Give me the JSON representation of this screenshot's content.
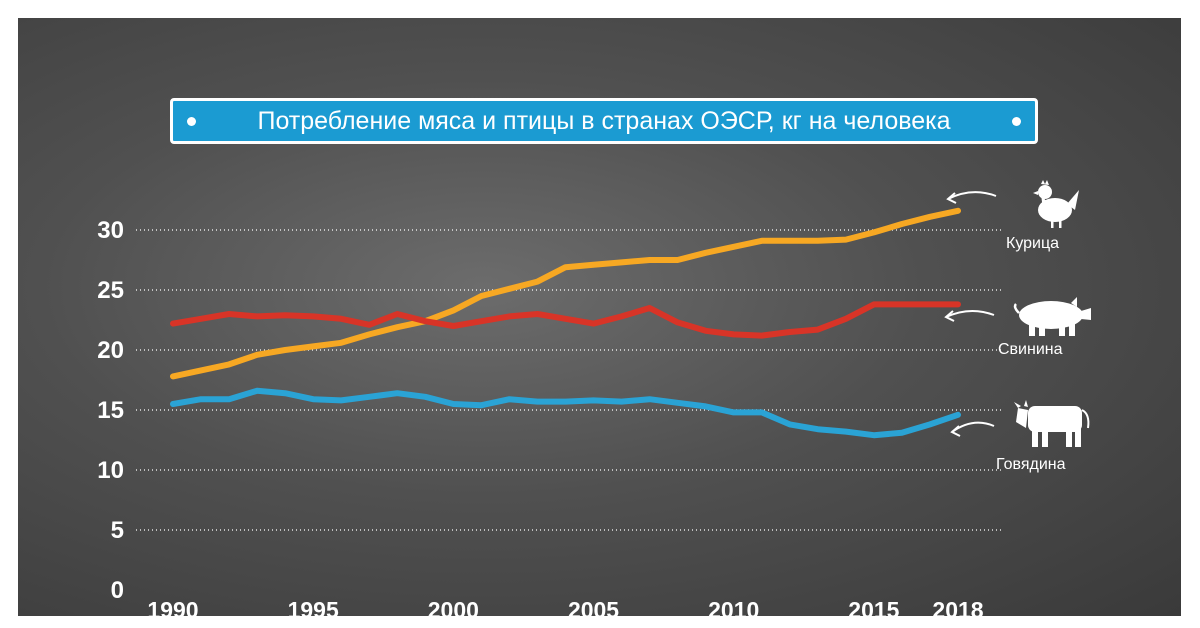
{
  "chart_data": {
    "type": "line",
    "title": "Потребление мяса и птицы в странах ОЭСР, кг на человека",
    "x_ticks": [
      1990,
      1995,
      2000,
      2005,
      2010,
      2015,
      2018
    ],
    "y_ticks": [
      0,
      5,
      10,
      15,
      20,
      25,
      30
    ],
    "xlim": [
      1990,
      2018
    ],
    "ylim": [
      0,
      30
    ],
    "grid": "horizontal dotted",
    "x": [
      1990,
      1991,
      1992,
      1993,
      1994,
      1995,
      1996,
      1997,
      1998,
      1999,
      2000,
      2001,
      2002,
      2003,
      2004,
      2005,
      2006,
      2007,
      2008,
      2009,
      2010,
      2011,
      2012,
      2013,
      2014,
      2015,
      2016,
      2017,
      2018
    ],
    "series": [
      {
        "name": "Курица",
        "color": "#f7a823",
        "values": [
          17.8,
          18.3,
          18.8,
          19.6,
          20.0,
          20.3,
          20.6,
          21.3,
          21.9,
          22.4,
          23.3,
          24.5,
          25.1,
          25.7,
          26.9,
          27.1,
          27.3,
          27.5,
          27.5,
          28.1,
          28.6,
          29.1,
          29.1,
          29.1,
          29.2,
          29.8,
          30.5,
          31.1,
          31.6
        ]
      },
      {
        "name": "Свинина",
        "color": "#d83427",
        "values": [
          22.2,
          22.6,
          23.0,
          22.8,
          22.9,
          22.8,
          22.6,
          22.1,
          23.0,
          22.4,
          22.0,
          22.4,
          22.8,
          23.0,
          22.6,
          22.2,
          22.8,
          23.5,
          22.3,
          21.6,
          21.3,
          21.2,
          21.5,
          21.7,
          22.6,
          23.8,
          23.8,
          23.8,
          23.8
        ]
      },
      {
        "name": "Говядина",
        "color": "#2aa3d5",
        "values": [
          15.5,
          15.9,
          15.9,
          16.6,
          16.4,
          15.9,
          15.8,
          16.1,
          16.4,
          16.1,
          15.5,
          15.4,
          15.9,
          15.7,
          15.7,
          15.8,
          15.7,
          15.9,
          15.6,
          15.3,
          14.8,
          14.8,
          13.8,
          13.4,
          13.2,
          12.9,
          13.1,
          13.8,
          14.6
        ]
      }
    ]
  },
  "icons": {
    "chicken": "chicken-icon",
    "pig": "pig-icon",
    "cow": "cow-icon"
  }
}
